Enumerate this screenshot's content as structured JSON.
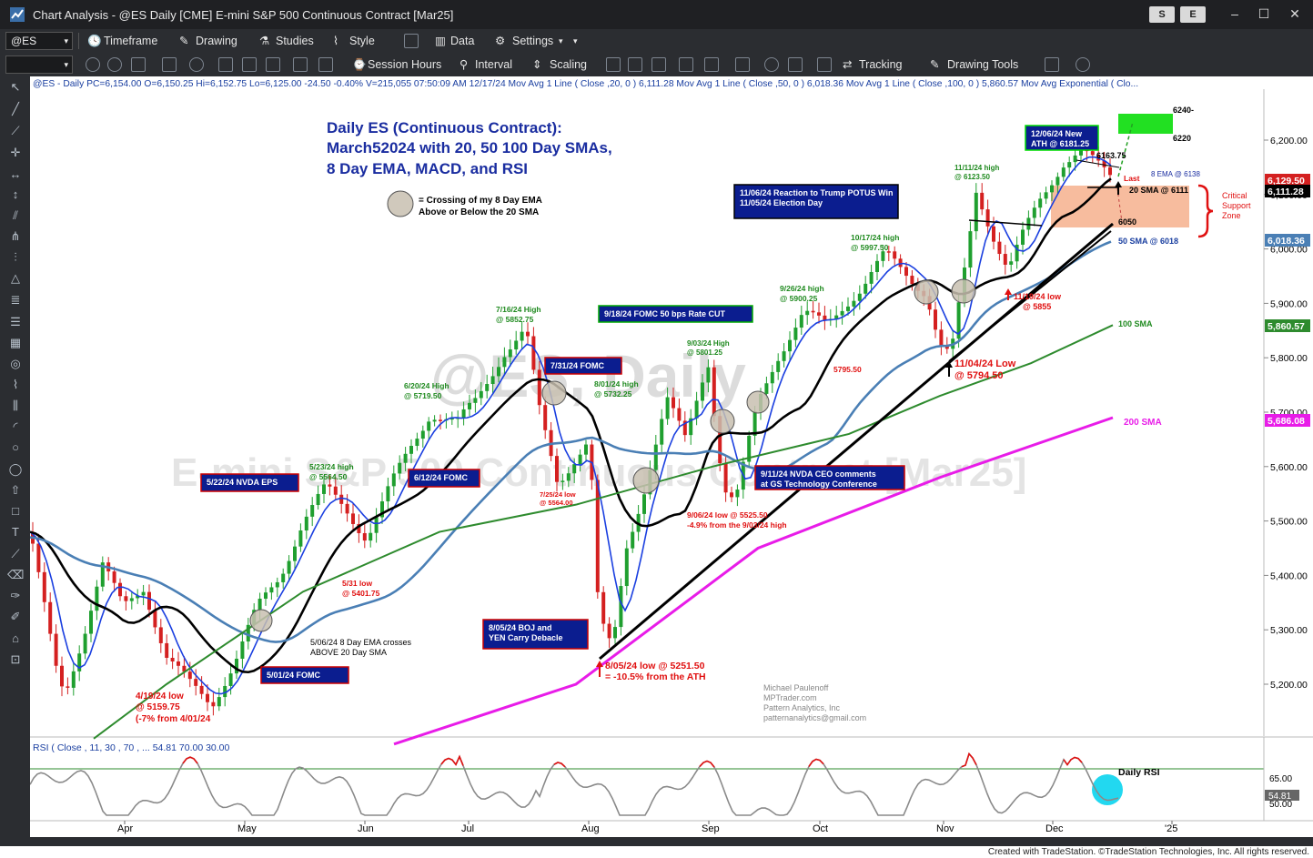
{
  "window": {
    "title": "Chart Analysis - @ES Daily [CME] E-mini S&P 500 Continuous Contract [Mar25]",
    "btn_s": "S",
    "btn_e": "E"
  },
  "toolbar1": {
    "symbol": "@ES",
    "timeframe": "Timeframe",
    "drawing": "Drawing",
    "studies": "Studies",
    "style": "Style",
    "data": "Data",
    "settings": "Settings"
  },
  "toolbar2": {
    "session": "Session Hours",
    "interval": "Interval",
    "scaling": "Scaling",
    "tracking": "Tracking",
    "drawing_tools": "Drawing Tools"
  },
  "header_line": "@ES - Daily  PC=6,154.00  O=6,150.25  Hi=6,152.75  Lo=6,125.00  -24.50  -0.40%  V=215,055  07:50:09 AM  12/17/24  Mov Avg 1 Line (  Close ,20,  0 )  6,111.28  Mov Avg 1 Line (  Close ,50,  0 )  6,018.36  Mov Avg 1 Line (  Close ,100,  0 )  5,860.57  Mov Avg Exponential (  Clo...",
  "title": [
    "Daily ES (Continuous Contract):",
    "March52024 with 20, 50 100 Day SMAs,",
    "8 Day EMA, MACD, and RSI"
  ],
  "watermark1": "@ES, Daily",
  "watermark2": "E-mini S&P 500 Continuous Contract [Mar25]",
  "legend_circle": [
    "= Crossing of my 8 Day EMA",
    "Above or Below the 20 SMA"
  ],
  "price_axis": [
    "6,200.00",
    "6,100.00",
    "6,000.00",
    "5,900.00",
    "5,800.00",
    "5,700.00",
    "5,600.00",
    "5,500.00",
    "5,400.00",
    "5,300.00",
    "5,200.00"
  ],
  "price_tags": {
    "last": "6,129.50",
    "sma20": "6,111.28",
    "sma50": "6,018.36",
    "sma100": "5,860.57",
    "sma200": "5,686.08"
  },
  "months": [
    "Apr",
    "May",
    "Jun",
    "Jul",
    "Aug",
    "Sep",
    "Oct",
    "Nov",
    "Dec",
    "'25"
  ],
  "boxes": {
    "b1": "5/22/24 NVDA EPS",
    "b2": "6/12/24 FOMC",
    "b3": "7/31/24 FOMC",
    "b4": "9/18/24 FOMC 50 bps Rate CUT",
    "b5a": "11/06/24 Reaction to Trump POTUS Win",
    "b5b": "11/05/24 Election Day",
    "b6a": "9/11/24 NVDA CEO comments",
    "b6b": "at GS Technology Conference",
    "b7a": "8/05/24 BOJ and",
    "b7b": "YEN Carry Debacle",
    "b8": "5/01/24 FOMC",
    "b9a": "12/06/24 New",
    "b9b": "ATH @ 6181.25"
  },
  "ann": {
    "a1a": "5/23/24 high",
    "a1b": "@ 5564.50",
    "a2a": "6/20/24 High",
    "a2b": "@ 5719.50",
    "a3a": "7/16/24 High",
    "a3b": "@ 5852.75",
    "a4a": "8/01/24 high",
    "a4b": "@ 5732.25",
    "a5a": "9/03/24 High",
    "a5b": "@ 5801.25",
    "a6a": "9/26/24 high",
    "a6b": "@ 5900.25",
    "a7a": "10/17/24 high",
    "a7b": "@ 5997.50",
    "a8a": "11/11/24 high",
    "a8b": "@ 6123.50",
    "r1a": "4/19/24 low",
    "r1b": "@ 5159.75",
    "r1c": "(-7% from 4/01/24",
    "r2a": "5/31 low",
    "r2b": "@ 5401.75",
    "r3a": "7/25/24 low",
    "r3b": "@ 5564.00",
    "r4a": "8/05/24 low @ 5251.50",
    "r4b": "= -10.5% from the ATH",
    "r5a": "9/06/24 low @ 5525.50",
    "r5b": "-4.9% from the 9/03/24 high",
    "r6": "5795.50",
    "r7a": "11/04/24 Low",
    "r7b": "@ 5794.50",
    "r8a": "11/19/24 low",
    "r8b": "@ 5855",
    "cross": "5/06/24 8 Day EMA crosses",
    "cross2": "ABOVE 20 Day SMA",
    "p6240": "6240-",
    "p6220": "6220",
    "p6163": "6163.75",
    "last": "Last",
    "ema8": "8 EMA @ 6138",
    "sma20": "20 SMA @ 6111",
    "p6050": "6050",
    "sma50": "50 SMA @ 6018",
    "sma100": "100 SMA",
    "sma200": "200 SMA",
    "crit1": "Critical",
    "crit2": "Support",
    "crit3": "Zone"
  },
  "credits": [
    "Michael Paulenoff",
    "MPTrader.com",
    "Pattern Analytics, Inc",
    "patternanalytics@gmail.com"
  ],
  "rsi": {
    "header": "RSI (  Close , 11,  30 ,  70 , ...   54.81  70.00  30.00",
    "label": "Daily RSI",
    "axis65": "65.00",
    "axis50": "50.00",
    "tag": "54.81"
  },
  "status": "Created with TradeStation. ©TradeStation Technologies, Inc. All rights reserved.",
  "colors": {
    "sma20": "#000000",
    "sma50": "#4a7fb5",
    "sma100": "#2e8b2e",
    "sma200": "#e81ce8",
    "ema8": "#1a3fe0",
    "up": "#1f9f2f",
    "down": "#d42020"
  }
}
